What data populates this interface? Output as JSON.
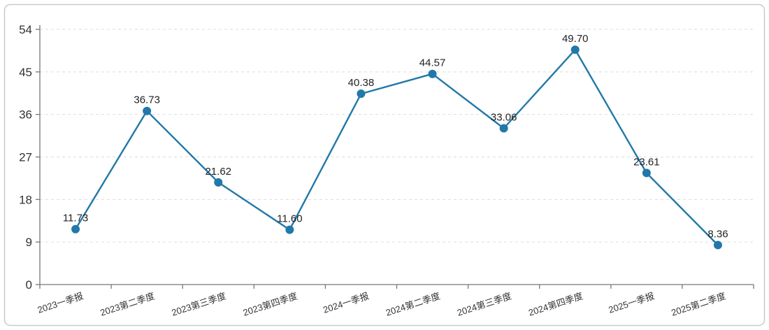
{
  "chart_data": {
    "type": "line",
    "title": "",
    "xlabel": "",
    "ylabel": "",
    "categories": [
      "2023一季报",
      "2023第二季度",
      "2023第三季度",
      "2023第四季度",
      "2024一季报",
      "2024第二季度",
      "2024第三季度",
      "2024第四季度",
      "2025一季报",
      "2025第二季度"
    ],
    "values": [
      11.73,
      36.73,
      21.62,
      11.6,
      40.38,
      44.57,
      33.06,
      49.7,
      23.61,
      8.36
    ],
    "value_labels": [
      "11.73",
      "36.73",
      "21.62",
      "11.60",
      "40.38",
      "44.57",
      "33.06",
      "49.70",
      "23.61",
      "8.36"
    ],
    "ylim": [
      0,
      54
    ],
    "yticks": [
      0,
      9,
      18,
      27,
      36,
      45,
      54
    ],
    "grid": "dashed-horizontal",
    "legend": "none",
    "colors": {
      "line": "#2278a8",
      "point": "#2278a8",
      "data_label": "#222222",
      "tick_label": "#333333",
      "axis": "#777777",
      "grid": "#dddddd",
      "border": "#c9c9c9",
      "background": "#ffffff"
    }
  }
}
